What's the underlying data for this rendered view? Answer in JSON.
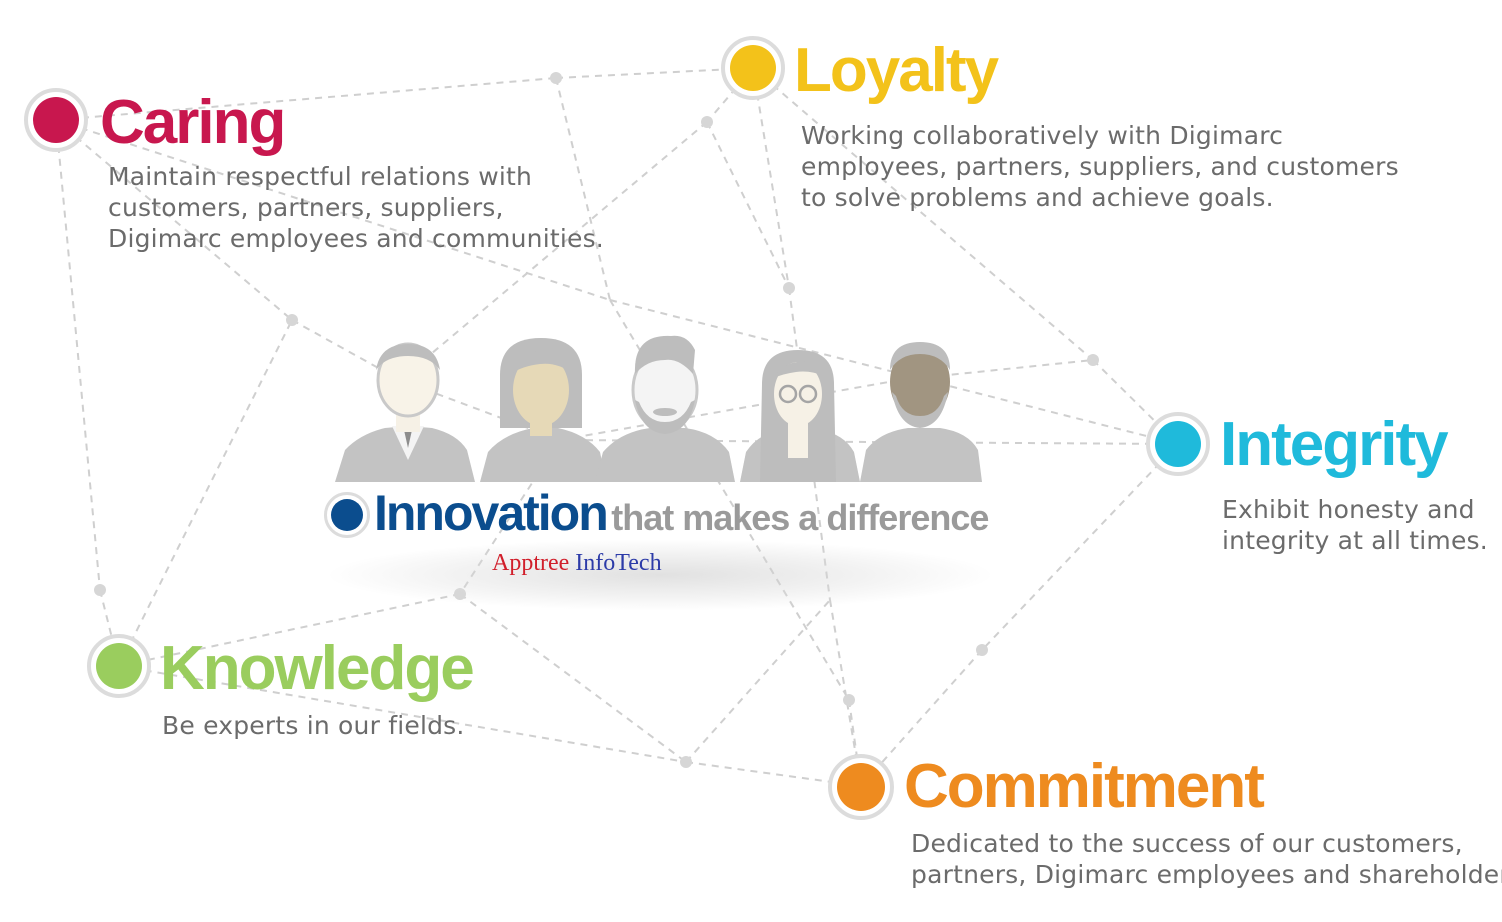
{
  "values": [
    {
      "key": "caring",
      "title": "Caring",
      "color": "#c8174e",
      "description": [
        "Maintain respectful relations with",
        "customers, partners, suppliers,",
        "Digimarc employees and communities."
      ]
    },
    {
      "key": "loyalty",
      "title": "Loyalty",
      "color": "#f3c21a",
      "description": [
        "Working collaboratively with Digimarc",
        "employees, partners, suppliers, and customers",
        "to solve problems and achieve goals."
      ]
    },
    {
      "key": "integrity",
      "title": "Integrity",
      "color": "#1fbadb",
      "description": [
        "Exhibit honesty and",
        "integrity at all times."
      ]
    },
    {
      "key": "knowledge",
      "title": "Knowledge",
      "color": "#9acd5e",
      "description": [
        "Be experts in our fields."
      ]
    },
    {
      "key": "commitment",
      "title": "Commitment",
      "color": "#ee8b1f",
      "description": [
        "Dedicated to the success of our customers,",
        "partners, Digimarc employees and shareholders."
      ]
    }
  ],
  "center": {
    "title_main": "Innovation",
    "title_sub": "that makes a difference",
    "color": "#0b4d8e",
    "icon": "people-group-icon",
    "people": [
      "businessman-icon",
      "woman-icon",
      "bearded-man-icon",
      "woman-glasses-icon",
      "older-man-icon"
    ]
  },
  "brand": {
    "part1": "Apptree",
    "part1_color": "#d11f2b",
    "part2": "InfoTech",
    "part2_color": "#2c3ba8"
  },
  "colors": {
    "network_line": "#cfcfcf",
    "network_dot": "#d6d6d6",
    "person": "#bdbdbd",
    "description": "#6b6b6b"
  }
}
